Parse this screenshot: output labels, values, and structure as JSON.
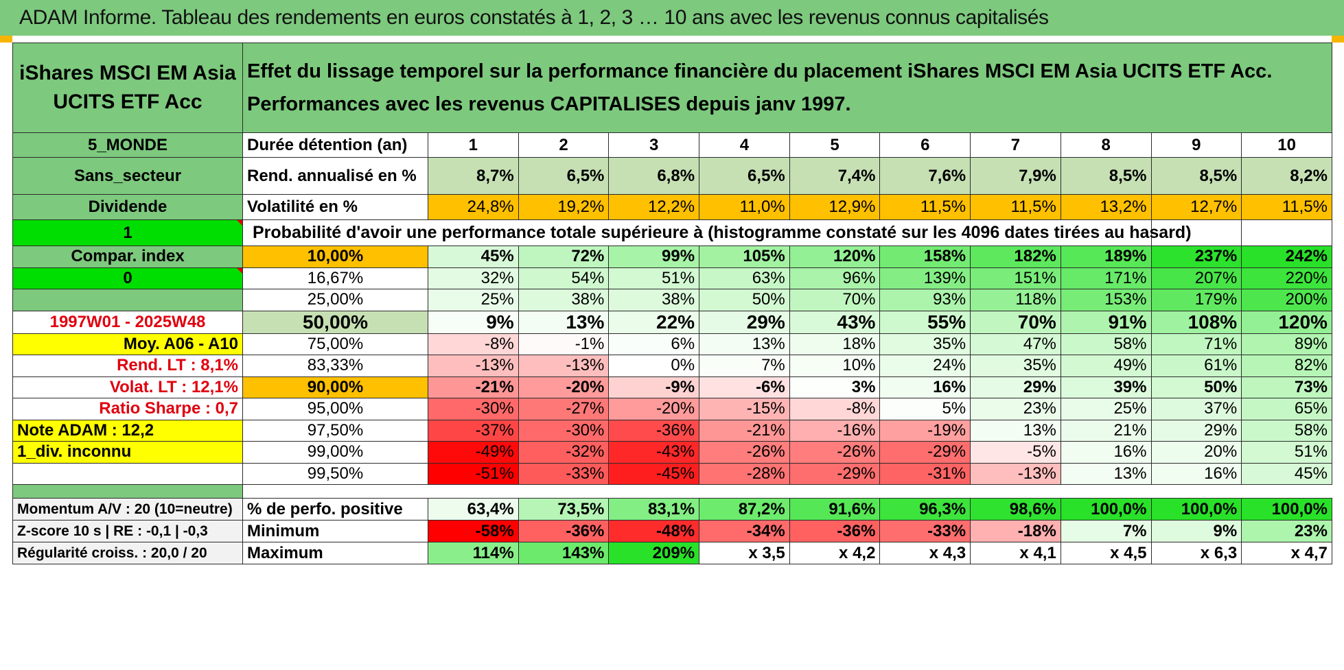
{
  "title": "ADAM Informe. Tableau des rendements en euros constatés à 1, 2, 3 … 10 ans avec les revenus connus capitalisés",
  "fund_name": "iShares MSCI EM Asia UCITS ETF Acc",
  "description": "Effet du lissage temporel sur la performance financière du placement iShares MSCI EM Asia UCITS ETF Acc. Performances avec les revenus CAPITALISES depuis janv 1997.",
  "left": {
    "region": "5_MONDE",
    "sector": "Sans_secteur",
    "dividend_label": "Dividende",
    "dividend_value": "1",
    "compar_index": "Compar. index",
    "compar_value": "0",
    "period": "1997W01 - 2025W48",
    "moy": "Moy. A06 - A10",
    "rend_lt": "Rend. LT :   8,1%",
    "volat_lt": "Volat. LT :   12,1%",
    "sharpe": "Ratio Sharpe :    0,7",
    "note": "Note ADAM : 12,2",
    "div_inconnu": "1_div. inconnu",
    "momentum": "Momentum A/V : 20 (10=neutre)",
    "zscore": "Z-score 10 s | RE : -0,1 | -0,3",
    "regularite": "Régularité croiss. : 20,0 / 20"
  },
  "labels": {
    "duree": "Durée détention (an)",
    "rend": "Rend. annualisé en %",
    "vol": "Volatilité en %",
    "proba": "Probabilité d'avoir une performance totale supérieure à (histogramme constaté sur les 4096 dates tirées au hasard)",
    "positive": "% de perfo. positive",
    "minimum": "Minimum",
    "maximum": "Maximum"
  },
  "years": [
    "1",
    "2",
    "3",
    "4",
    "5",
    "6",
    "7",
    "8",
    "9",
    "10"
  ],
  "rend": [
    "8,7%",
    "6,5%",
    "6,8%",
    "6,5%",
    "7,4%",
    "7,6%",
    "7,9%",
    "8,5%",
    "8,5%",
    "8,2%"
  ],
  "vol": [
    "24,8%",
    "19,2%",
    "12,2%",
    "11,0%",
    "12,9%",
    "11,5%",
    "11,5%",
    "13,2%",
    "12,7%",
    "11,5%"
  ],
  "prob_rows": [
    {
      "p": "10,00%",
      "v": [
        "45%",
        "72%",
        "99%",
        "105%",
        "120%",
        "158%",
        "182%",
        "189%",
        "237%",
        "242%"
      ]
    },
    {
      "p": "16,67%",
      "v": [
        "32%",
        "54%",
        "51%",
        "63%",
        "96%",
        "139%",
        "151%",
        "171%",
        "207%",
        "220%"
      ]
    },
    {
      "p": "25,00%",
      "v": [
        "25%",
        "38%",
        "38%",
        "50%",
        "70%",
        "93%",
        "118%",
        "153%",
        "179%",
        "200%"
      ]
    },
    {
      "p": "50,00%",
      "v": [
        "9%",
        "13%",
        "22%",
        "29%",
        "43%",
        "55%",
        "70%",
        "91%",
        "108%",
        "120%"
      ]
    },
    {
      "p": "75,00%",
      "v": [
        "-8%",
        "-1%",
        "6%",
        "13%",
        "18%",
        "35%",
        "47%",
        "58%",
        "71%",
        "89%"
      ]
    },
    {
      "p": "83,33%",
      "v": [
        "-13%",
        "-13%",
        "0%",
        "7%",
        "10%",
        "24%",
        "35%",
        "49%",
        "61%",
        "82%"
      ]
    },
    {
      "p": "90,00%",
      "v": [
        "-21%",
        "-20%",
        "-9%",
        "-6%",
        "3%",
        "16%",
        "29%",
        "39%",
        "50%",
        "73%"
      ]
    },
    {
      "p": "95,00%",
      "v": [
        "-30%",
        "-27%",
        "-20%",
        "-15%",
        "-8%",
        "5%",
        "23%",
        "25%",
        "37%",
        "65%"
      ]
    },
    {
      "p": "97,50%",
      "v": [
        "-37%",
        "-30%",
        "-36%",
        "-21%",
        "-16%",
        "-19%",
        "13%",
        "21%",
        "29%",
        "58%"
      ]
    },
    {
      "p": "99,00%",
      "v": [
        "-49%",
        "-32%",
        "-43%",
        "-26%",
        "-26%",
        "-29%",
        "-5%",
        "16%",
        "20%",
        "51%"
      ]
    },
    {
      "p": "99,50%",
      "v": [
        "-51%",
        "-33%",
        "-45%",
        "-28%",
        "-29%",
        "-31%",
        "-13%",
        "13%",
        "16%",
        "45%"
      ]
    }
  ],
  "positive": [
    "63,4%",
    "73,5%",
    "83,1%",
    "87,2%",
    "91,6%",
    "96,3%",
    "98,6%",
    "100,0%",
    "100,0%",
    "100,0%"
  ],
  "minimum": [
    "-58%",
    "-36%",
    "-48%",
    "-34%",
    "-36%",
    "-33%",
    "-18%",
    "7%",
    "9%",
    "23%"
  ],
  "maximum": [
    "114%",
    "143%",
    "209%",
    "x 3,5",
    "x 4,2",
    "x 4,3",
    "x 4,1",
    "x 4,5",
    "x 6,3",
    "x 4,7"
  ]
}
